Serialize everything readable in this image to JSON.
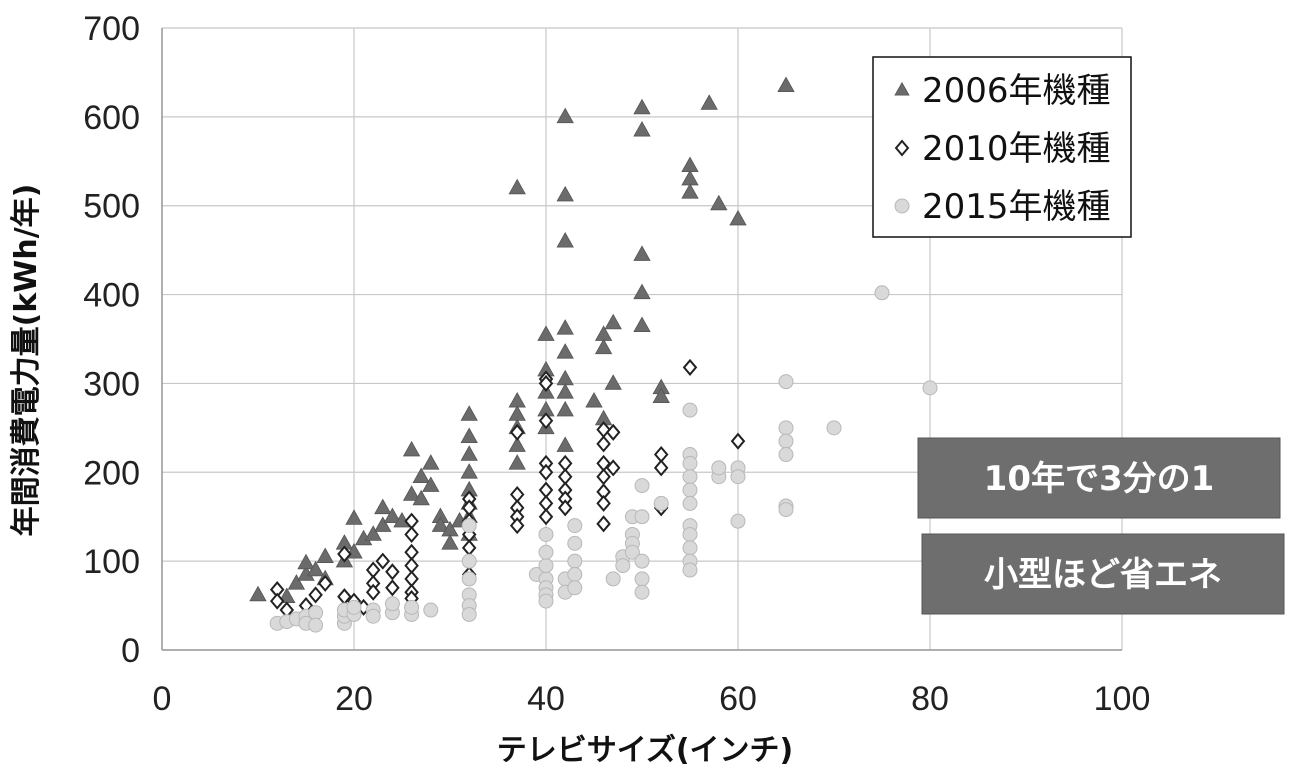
{
  "chart_data": {
    "type": "scatter",
    "xlabel": "テレビサイズ(インチ)",
    "ylabel": "年間消費電力量(kWh/年)",
    "xlim": [
      0,
      100
    ],
    "ylim": [
      0,
      700
    ],
    "x_ticks": [
      0,
      20,
      40,
      60,
      80,
      100
    ],
    "y_ticks": [
      0,
      100,
      200,
      300,
      400,
      500,
      600,
      700
    ],
    "grid": true,
    "legend_position": "top-right",
    "series": [
      {
        "name": "2006年機種",
        "marker": "triangle",
        "color": "#6b6b6b",
        "points": [
          [
            10,
            62
          ],
          [
            13,
            60
          ],
          [
            14,
            75
          ],
          [
            15,
            85
          ],
          [
            15,
            98
          ],
          [
            16,
            90
          ],
          [
            17,
            80
          ],
          [
            17,
            105
          ],
          [
            19,
            100
          ],
          [
            19,
            120
          ],
          [
            20,
            148
          ],
          [
            20,
            110
          ],
          [
            21,
            125
          ],
          [
            22,
            130
          ],
          [
            23,
            140
          ],
          [
            23,
            160
          ],
          [
            24,
            150
          ],
          [
            25,
            145
          ],
          [
            26,
            175
          ],
          [
            26,
            225
          ],
          [
            27,
            195
          ],
          [
            27,
            170
          ],
          [
            28,
            210
          ],
          [
            28,
            185
          ],
          [
            29,
            150
          ],
          [
            29,
            140
          ],
          [
            30,
            135
          ],
          [
            30,
            120
          ],
          [
            31,
            145
          ],
          [
            32,
            265
          ],
          [
            32,
            240
          ],
          [
            32,
            220
          ],
          [
            32,
            200
          ],
          [
            32,
            180
          ],
          [
            32,
            165
          ],
          [
            32,
            150
          ],
          [
            32,
            130
          ],
          [
            37,
            520
          ],
          [
            37,
            280
          ],
          [
            37,
            265
          ],
          [
            37,
            250
          ],
          [
            37,
            230
          ],
          [
            37,
            210
          ],
          [
            40,
            355
          ],
          [
            40,
            315
          ],
          [
            40,
            290
          ],
          [
            40,
            270
          ],
          [
            40,
            250
          ],
          [
            42,
            600
          ],
          [
            42,
            512
          ],
          [
            42,
            460
          ],
          [
            42,
            362
          ],
          [
            42,
            335
          ],
          [
            42,
            305
          ],
          [
            42,
            290
          ],
          [
            42,
            270
          ],
          [
            42,
            230
          ],
          [
            45,
            280
          ],
          [
            46,
            355
          ],
          [
            46,
            340
          ],
          [
            46,
            260
          ],
          [
            47,
            368
          ],
          [
            47,
            300
          ],
          [
            50,
            610
          ],
          [
            50,
            585
          ],
          [
            50,
            445
          ],
          [
            50,
            402
          ],
          [
            50,
            365
          ],
          [
            52,
            295
          ],
          [
            52,
            285
          ],
          [
            55,
            545
          ],
          [
            55,
            530
          ],
          [
            55,
            515
          ],
          [
            57,
            615
          ],
          [
            58,
            502
          ],
          [
            60,
            485
          ],
          [
            65,
            635
          ]
        ]
      },
      {
        "name": "2010年機種",
        "marker": "diamond",
        "color": "#222222",
        "points": [
          [
            12,
            68
          ],
          [
            12,
            55
          ],
          [
            13,
            45
          ],
          [
            15,
            50
          ],
          [
            16,
            62
          ],
          [
            17,
            75
          ],
          [
            19,
            108
          ],
          [
            19,
            60
          ],
          [
            20,
            55
          ],
          [
            21,
            48
          ],
          [
            22,
            90
          ],
          [
            22,
            75
          ],
          [
            22,
            65
          ],
          [
            23,
            100
          ],
          [
            24,
            88
          ],
          [
            24,
            70
          ],
          [
            26,
            145
          ],
          [
            26,
            130
          ],
          [
            26,
            110
          ],
          [
            26,
            95
          ],
          [
            26,
            80
          ],
          [
            26,
            65
          ],
          [
            26,
            58
          ],
          [
            32,
            170
          ],
          [
            32,
            160
          ],
          [
            32,
            145
          ],
          [
            32,
            130
          ],
          [
            32,
            115
          ],
          [
            32,
            100
          ],
          [
            32,
            85
          ],
          [
            37,
            245
          ],
          [
            37,
            175
          ],
          [
            37,
            160
          ],
          [
            37,
            150
          ],
          [
            37,
            140
          ],
          [
            40,
            305
          ],
          [
            40,
            300
          ],
          [
            40,
            258
          ],
          [
            40,
            210
          ],
          [
            40,
            200
          ],
          [
            40,
            180
          ],
          [
            40,
            165
          ],
          [
            40,
            150
          ],
          [
            42,
            210
          ],
          [
            42,
            195
          ],
          [
            42,
            180
          ],
          [
            42,
            170
          ],
          [
            42,
            160
          ],
          [
            46,
            248
          ],
          [
            46,
            232
          ],
          [
            46,
            210
          ],
          [
            46,
            195
          ],
          [
            46,
            178
          ],
          [
            46,
            165
          ],
          [
            46,
            142
          ],
          [
            47,
            245
          ],
          [
            47,
            205
          ],
          [
            52,
            220
          ],
          [
            52,
            205
          ],
          [
            52,
            160
          ],
          [
            55,
            318
          ],
          [
            55,
            210
          ],
          [
            60,
            235
          ]
        ]
      },
      {
        "name": "2015年機種",
        "marker": "circle",
        "color": "#cfcfcf",
        "points": [
          [
            12,
            30
          ],
          [
            13,
            32
          ],
          [
            14,
            35
          ],
          [
            15,
            38
          ],
          [
            15,
            30
          ],
          [
            16,
            42
          ],
          [
            16,
            28
          ],
          [
            19,
            30
          ],
          [
            19,
            38
          ],
          [
            19,
            45
          ],
          [
            20,
            40
          ],
          [
            20,
            48
          ],
          [
            22,
            45
          ],
          [
            22,
            38
          ],
          [
            24,
            42
          ],
          [
            24,
            52
          ],
          [
            26,
            40
          ],
          [
            26,
            48
          ],
          [
            28,
            45
          ],
          [
            32,
            140
          ],
          [
            32,
            100
          ],
          [
            32,
            80
          ],
          [
            32,
            62
          ],
          [
            32,
            50
          ],
          [
            32,
            40
          ],
          [
            39,
            85
          ],
          [
            40,
            80
          ],
          [
            40,
            70
          ],
          [
            40,
            62
          ],
          [
            40,
            55
          ],
          [
            40,
            95
          ],
          [
            40,
            110
          ],
          [
            40,
            130
          ],
          [
            42,
            80
          ],
          [
            42,
            65
          ],
          [
            43,
            140
          ],
          [
            43,
            120
          ],
          [
            43,
            100
          ],
          [
            43,
            85
          ],
          [
            43,
            70
          ],
          [
            47,
            80
          ],
          [
            48,
            105
          ],
          [
            48,
            95
          ],
          [
            49,
            150
          ],
          [
            49,
            130
          ],
          [
            49,
            120
          ],
          [
            49,
            110
          ],
          [
            50,
            185
          ],
          [
            50,
            150
          ],
          [
            50,
            100
          ],
          [
            50,
            80
          ],
          [
            50,
            65
          ],
          [
            52,
            165
          ],
          [
            55,
            270
          ],
          [
            55,
            220
          ],
          [
            55,
            210
          ],
          [
            55,
            195
          ],
          [
            55,
            180
          ],
          [
            55,
            165
          ],
          [
            55,
            140
          ],
          [
            55,
            130
          ],
          [
            55,
            115
          ],
          [
            55,
            100
          ],
          [
            55,
            90
          ],
          [
            58,
            195
          ],
          [
            58,
            205
          ],
          [
            60,
            205
          ],
          [
            60,
            195
          ],
          [
            60,
            145
          ],
          [
            65,
            302
          ],
          [
            65,
            250
          ],
          [
            65,
            235
          ],
          [
            65,
            220
          ],
          [
            65,
            162
          ],
          [
            65,
            158
          ],
          [
            70,
            250
          ],
          [
            75,
            402
          ],
          [
            80,
            295
          ]
        ]
      }
    ],
    "annotations": [
      "10年で3分の1",
      "小型ほど省エネ"
    ]
  },
  "colors": {
    "grid": "#c8c8c8",
    "axis": "#999999",
    "callout_fill": "#6e6e6e",
    "callout_text": "#ffffff"
  }
}
